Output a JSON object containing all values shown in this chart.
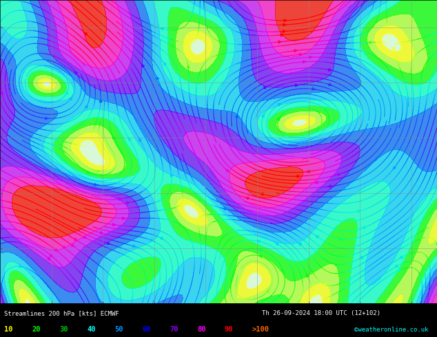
{
  "title_line1": "Streamlines 200 hPa [kts] ECMWF",
  "title_line2": "Th 26-09-2024 18:00 UTC (12+102)",
  "credit": "©weatheronline.co.uk",
  "legend_values": [
    10,
    20,
    30,
    40,
    50,
    60,
    70,
    80,
    90
  ],
  "legend_label_gt": ">100",
  "legend_colors": [
    "#ffff00",
    "#00ff00",
    "#00cc00",
    "#00ffff",
    "#0099ff",
    "#0000ff",
    "#9900ff",
    "#ff00ff",
    "#ff0000",
    "#ff6600"
  ],
  "fig_width": 6.34,
  "fig_height": 4.9,
  "dpi": 100,
  "speed_levels": [
    0,
    10,
    20,
    30,
    40,
    50,
    60,
    70,
    80,
    90,
    100,
    150
  ],
  "speed_colors": [
    "#e0ffe0",
    "#ffff00",
    "#adff2f",
    "#00ff00",
    "#00ffcc",
    "#00ccff",
    "#0066ff",
    "#6600ff",
    "#cc00ff",
    "#ff00cc",
    "#ff0000"
  ],
  "axis_lon_min": -90,
  "axis_lon_max": -5,
  "axis_lat_min": 20,
  "axis_lat_max": 75,
  "grid_color": "#888888",
  "lon_ticks": [
    -80,
    -70,
    -60,
    -50,
    -40,
    -30,
    -20,
    -10
  ],
  "lat_ticks": [
    20,
    30,
    40,
    50,
    60,
    70
  ]
}
